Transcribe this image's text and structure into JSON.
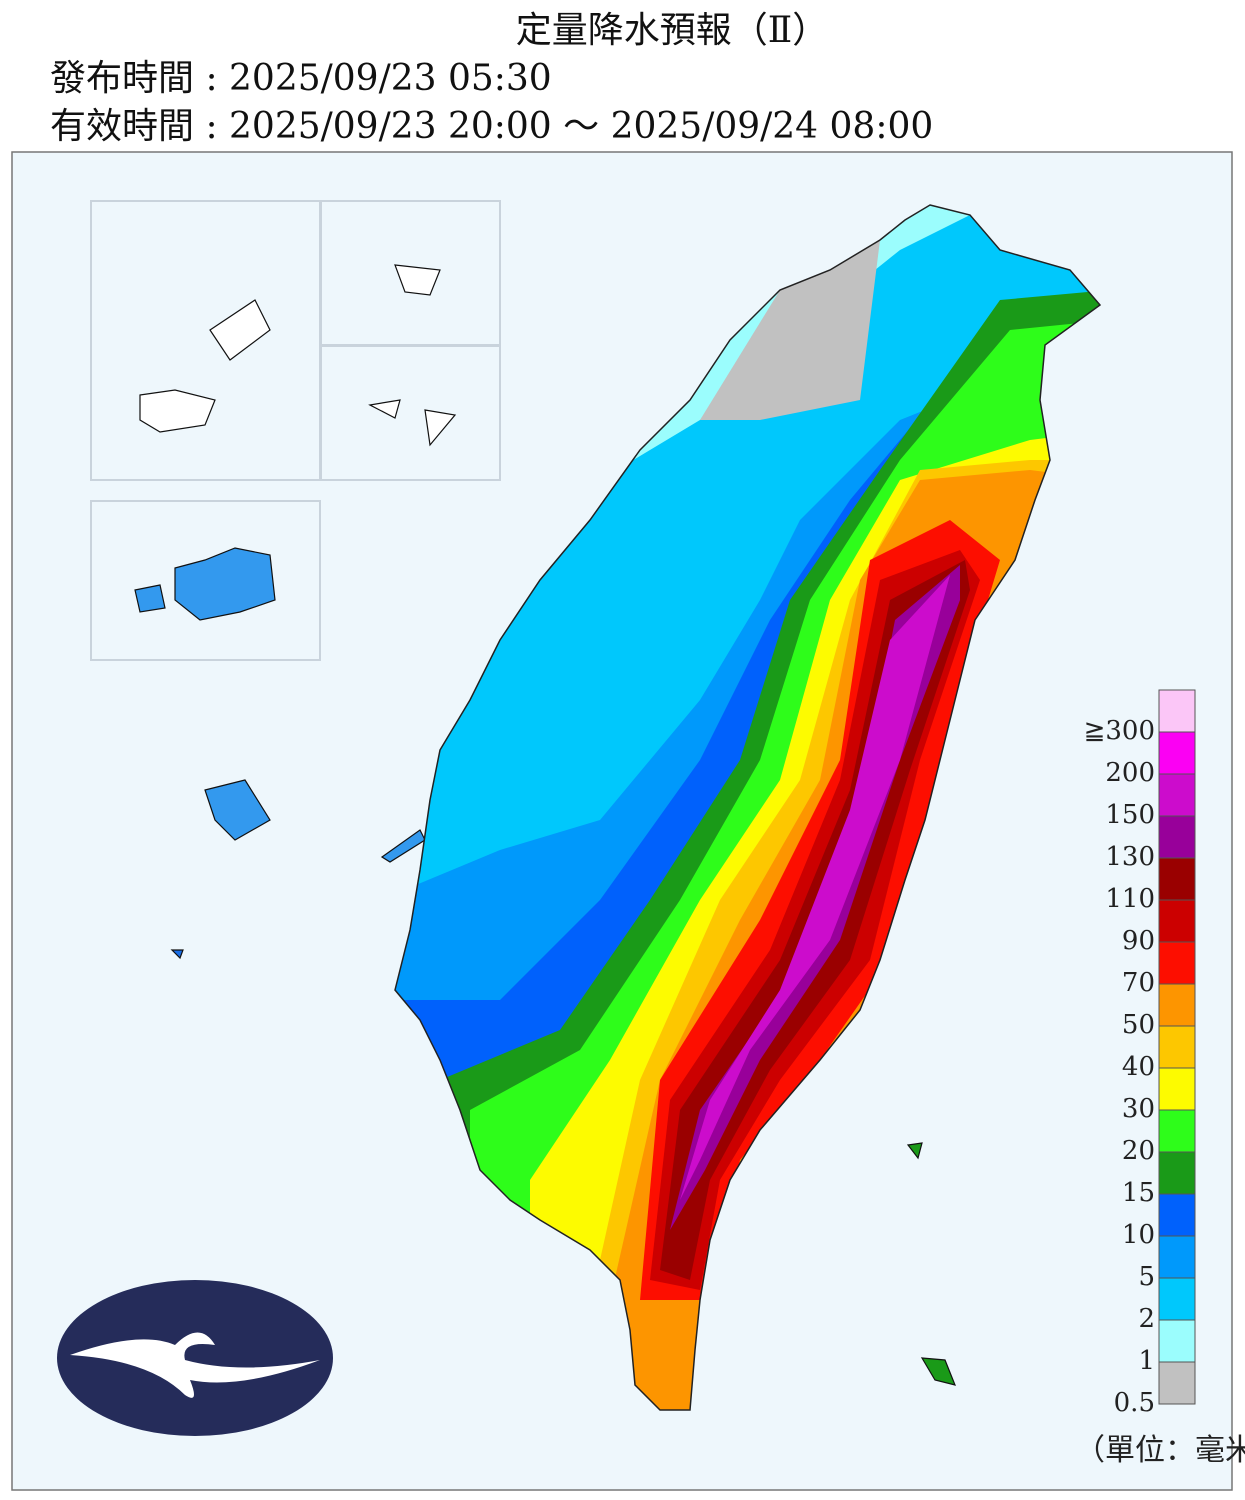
{
  "header": {
    "title": "定量降水預報（Ⅱ）",
    "issued": "發布時間 : 2025/09/23 05:30",
    "valid": "有效時間 : 2025/09/23 20:00 ～ 2025/09/24 08:00"
  },
  "legend": {
    "unit": "（單位：毫米）",
    "items": [
      {
        "label": "≧300",
        "color": "#fbc6f7"
      },
      {
        "label": "200",
        "color": "#fb00f3"
      },
      {
        "label": "150",
        "color": "#cc0ccc"
      },
      {
        "label": "130",
        "color": "#98009a"
      },
      {
        "label": "110",
        "color": "#9a0000"
      },
      {
        "label": "90",
        "color": "#cc0000"
      },
      {
        "label": "70",
        "color": "#fd0e00"
      },
      {
        "label": "50",
        "color": "#fd9500"
      },
      {
        "label": "40",
        "color": "#fdc700"
      },
      {
        "label": "30",
        "color": "#fdfb00"
      },
      {
        "label": "20",
        "color": "#2efd1a"
      },
      {
        "label": "15",
        "color": "#1a9a18"
      },
      {
        "label": "10",
        "color": "#0061fc"
      },
      {
        "label": "5",
        "color": "#0099fb"
      },
      {
        "label": "2",
        "color": "#00c8fc"
      },
      {
        "label": "1",
        "color": "#9bfdfd"
      },
      {
        "label": "0.5",
        "color": "#c1c1c1"
      }
    ]
  }
}
